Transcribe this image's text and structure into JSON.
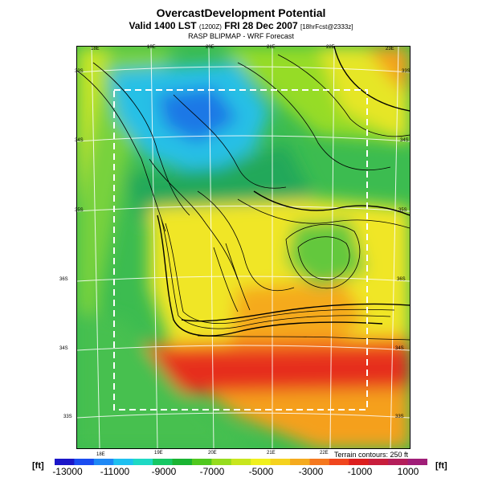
{
  "title": "OvercastDevelopment Potential",
  "subtitle_main": "Valid 1400 LST",
  "subtitle_small1": "(1200Z)",
  "subtitle_date": "FRI 28 Dec 2007",
  "subtitle_small2": "[18hrFcst@2333z]",
  "subtitle2": "RASP BLIPMAP - WRF Forecast",
  "terrain_note": "Terrain contours: 250 ft",
  "unit_left": "[ft]",
  "unit_right": "[ft]",
  "lon_ticks_top": [
    "18E",
    "19E",
    "20E",
    "21E",
    "22E",
    "23E"
  ],
  "lon_ticks_bottom": [
    "18E",
    "19E",
    "20E",
    "21E",
    "22E"
  ],
  "lat_ticks_left": [
    "33S",
    "34S",
    "35S",
    "36S",
    "34S",
    "33S"
  ],
  "lat_ticks_right": [
    "33S",
    "34S",
    "35S",
    "36S",
    "34S",
    "33S"
  ],
  "colorbar": {
    "labels": [
      "-13000",
      "-11000",
      "-9000",
      "-7000",
      "-5000",
      "-3000",
      "-1000",
      "1000"
    ],
    "colors": [
      "#1a16c8",
      "#1a4cf0",
      "#1e88f5",
      "#1ec0f0",
      "#1ed9c4",
      "#16c864",
      "#1ab432",
      "#50c81e",
      "#96dc1e",
      "#c8e61e",
      "#f0f01e",
      "#f5d21e",
      "#f5aa1e",
      "#f5781e",
      "#f0461e",
      "#dc1e1e",
      "#c81e3c",
      "#b41e5a",
      "#a01e78"
    ]
  },
  "colors": {
    "green": "#2fb55a",
    "green_light": "#64d040",
    "cyan": "#28c0e6",
    "blue": "#1e78e6",
    "yellow": "#f0e628",
    "orange": "#f5a01e",
    "red": "#e63c1e",
    "red_dark": "#dc1e1e"
  }
}
